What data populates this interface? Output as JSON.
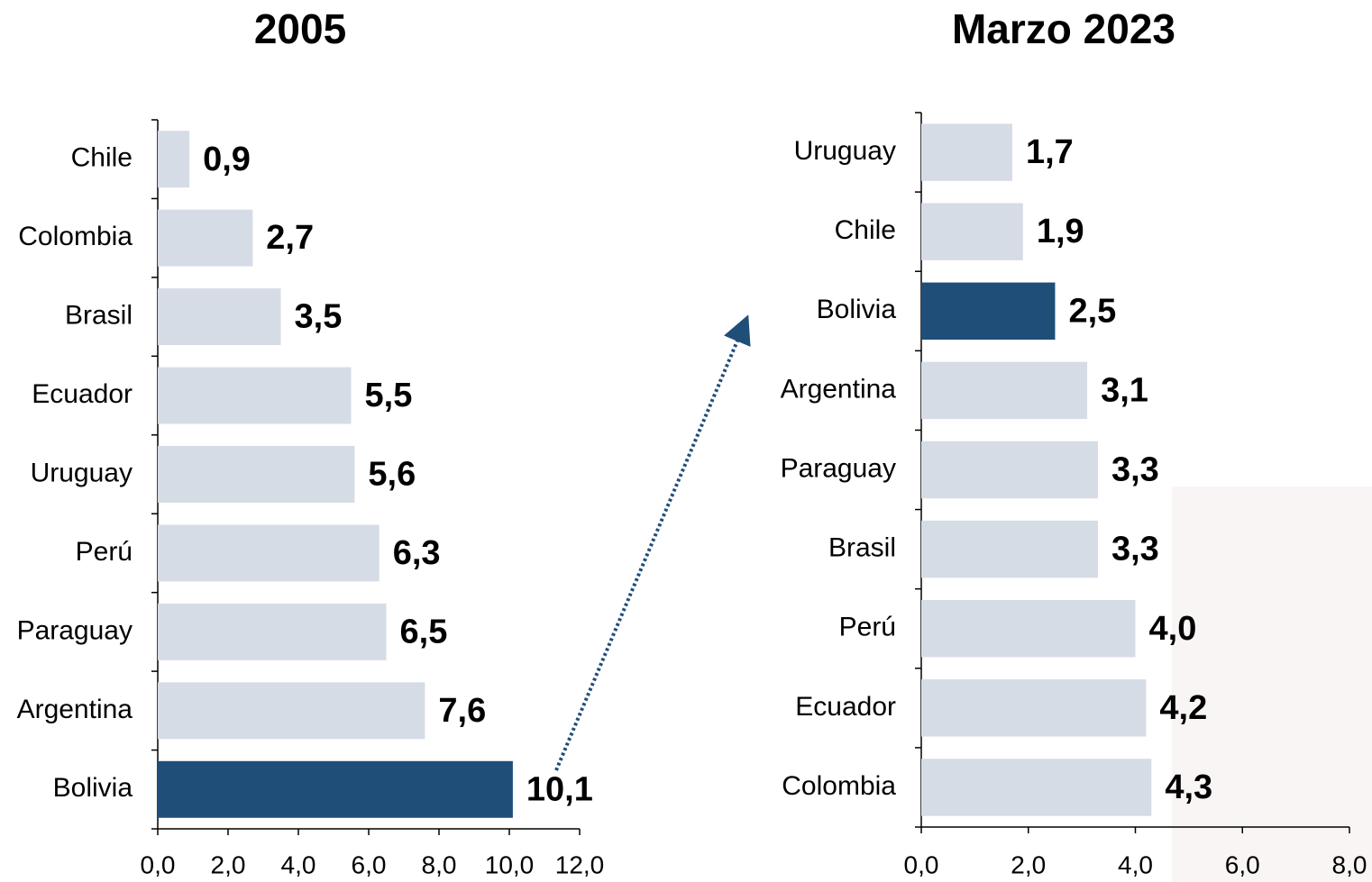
{
  "chart_data": [
    {
      "type": "bar",
      "orientation": "horizontal",
      "title": "2005",
      "categories": [
        "Chile",
        "Colombia",
        "Brasil",
        "Ecuador",
        "Uruguay",
        "Perú",
        "Paraguay",
        "Argentina",
        "Bolivia"
      ],
      "values": [
        0.9,
        2.7,
        3.5,
        5.5,
        5.6,
        6.3,
        6.5,
        7.6,
        10.1
      ],
      "value_labels": [
        "0,9",
        "2,7",
        "3,5",
        "5,5",
        "5,6",
        "6,3",
        "6,5",
        "7,6",
        "10,1"
      ],
      "colors": [
        "#d6dce5",
        "#d6dce5",
        "#d6dce5",
        "#d6dce5",
        "#d6dce5",
        "#d6dce5",
        "#d6dce5",
        "#d6dce5",
        "#1f4e79"
      ],
      "xlim": [
        0,
        12
      ],
      "xticks": [
        {
          "value": 0,
          "label": "0,0"
        },
        {
          "value": 2,
          "label": "2,0"
        },
        {
          "value": 4,
          "label": "4,0"
        },
        {
          "value": 6,
          "label": "6,0"
        },
        {
          "value": 8,
          "label": "8,0"
        },
        {
          "value": 10,
          "label": "10,0"
        },
        {
          "value": 12,
          "label": "12,0"
        }
      ]
    },
    {
      "type": "bar",
      "orientation": "horizontal",
      "title": "Marzo 2023",
      "categories": [
        "Uruguay",
        "Chile",
        "Bolivia",
        "Argentina",
        "Paraguay",
        "Brasil",
        "Perú",
        "Ecuador",
        "Colombia"
      ],
      "values": [
        1.7,
        1.9,
        2.5,
        3.1,
        3.3,
        3.3,
        4.0,
        4.2,
        4.3
      ],
      "value_labels": [
        "1,7",
        "1,9",
        "2,5",
        "3,1",
        "3,3",
        "3,3",
        "4,0",
        "4,2",
        "4,3"
      ],
      "colors": [
        "#d6dce5",
        "#d6dce5",
        "#1f4e79",
        "#d6dce5",
        "#d6dce5",
        "#d6dce5",
        "#d6dce5",
        "#d6dce5",
        "#d6dce5"
      ],
      "xlim": [
        0,
        8
      ],
      "xticks": [
        {
          "value": 0,
          "label": "0,0"
        },
        {
          "value": 2,
          "label": "2,0"
        },
        {
          "value": 4,
          "label": "4,0"
        },
        {
          "value": 6,
          "label": "6,0"
        },
        {
          "value": 8,
          "label": "8,0"
        }
      ]
    }
  ]
}
